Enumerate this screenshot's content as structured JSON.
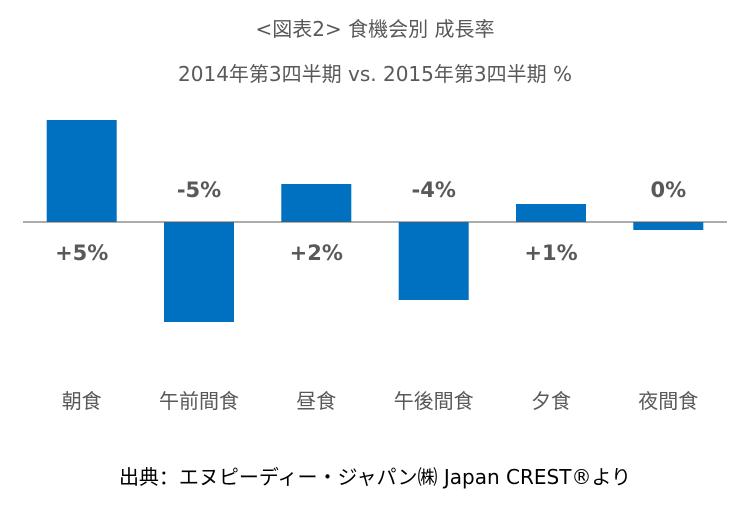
{
  "title": "<図表2> 食機会別 成長率",
  "subtitle": "2014年第3四半期 vs. 2015年第3四半期 %",
  "source": "出典：エヌピーディー・ジャパン㈱ Japan CREST®より",
  "colors": {
    "bar": "#0070C0",
    "axis": "#595959",
    "text": "#595959"
  },
  "chart_data": {
    "type": "bar",
    "title": "<図表2> 食機会別 成長率",
    "subtitle": "2014年第3四半期 vs. 2015年第3四半期 %",
    "categories": [
      "朝食",
      "午前間食",
      "昼食",
      "午後間食",
      "夕食",
      "夜間食"
    ],
    "values": [
      5.1,
      -5.0,
      1.9,
      -3.9,
      0.9,
      -0.4
    ],
    "data_labels": [
      "+5%",
      "-5%",
      "+2%",
      "-4%",
      "+1%",
      "0%"
    ],
    "ylim": [
      -6,
      6
    ],
    "grid": false,
    "legend": "none"
  }
}
